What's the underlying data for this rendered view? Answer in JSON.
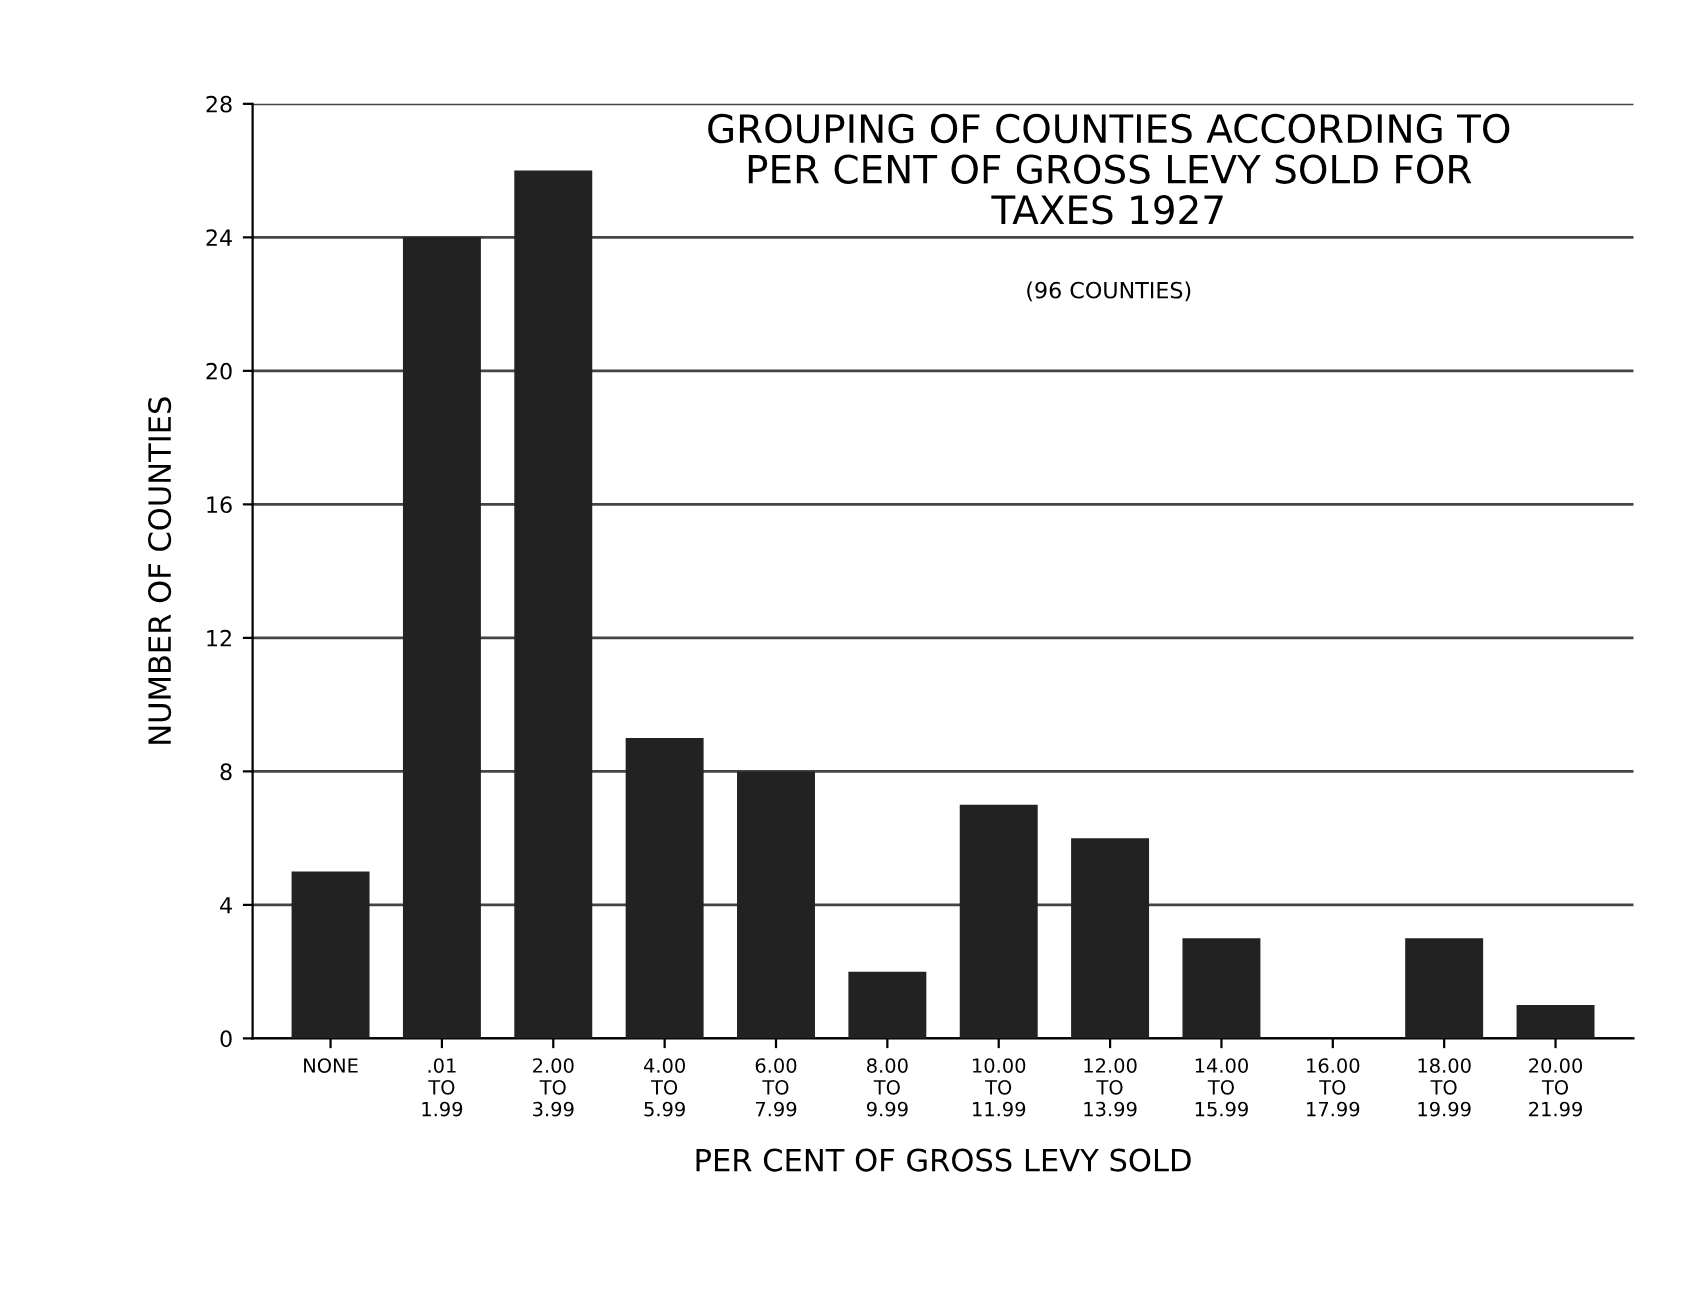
{
  "chart_data": {
    "type": "bar",
    "title": "GROUPING OF COUNTIES ACCORDING TO\nPER CENT OF GROSS LEVY SOLD FOR\nTAXES 1927",
    "subtitle": "(96 COUNTIES)",
    "xlabel": "PER CENT OF GROSS LEVY SOLD",
    "ylabel": "NUMBER OF COUNTIES",
    "categories": [
      "NONE",
      ".01\nTO\n1.99",
      "2.00\nTO\n3.99",
      "4.00\nTO\n5.99",
      "6.00\nTO\n7.99",
      "8.00\nTO\n9.99",
      "10.00\nTO\n11.99",
      "12.00\nTO\n13.99",
      "14.00\nTO\n15.99",
      "16.00\nTO\n17.99",
      "18.00\nTO\n19.99",
      "20.00\nTO\n21.99"
    ],
    "values": [
      5,
      24,
      26,
      9,
      8,
      2,
      7,
      6,
      3,
      0,
      3,
      1
    ],
    "color": "#222222",
    "ylim": [
      0,
      28
    ],
    "yticks": [
      0,
      4,
      8,
      12,
      16,
      20,
      24,
      28
    ],
    "grid": "y"
  }
}
